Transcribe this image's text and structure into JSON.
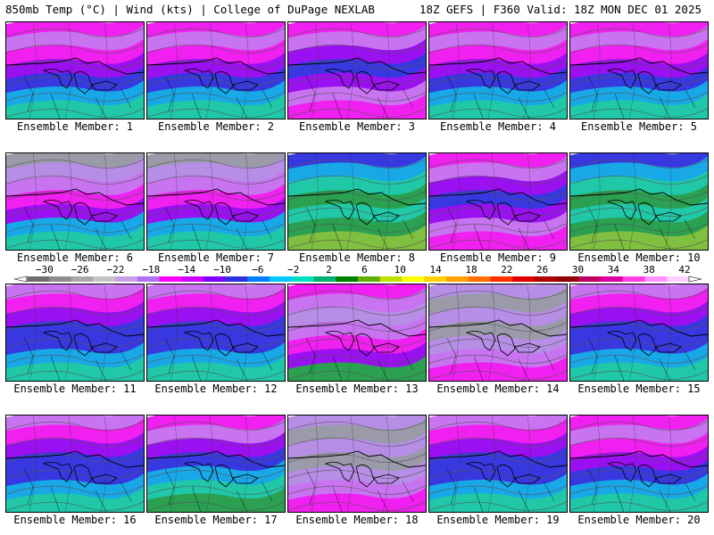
{
  "header": {
    "left": "850mb Temp (°C) | Wind (kts) | College of DuPage NEXLAB",
    "right": "18Z GEFS | F360 Valid: 18Z MON DEC 01 2025"
  },
  "members": [
    {
      "label": "Ensemble Member: 1",
      "pattern": "warm-south"
    },
    {
      "label": "Ensemble Member: 2",
      "pattern": "warm-south"
    },
    {
      "label": "Ensemble Member: 3",
      "pattern": "cold-dip"
    },
    {
      "label": "Ensemble Member: 4",
      "pattern": "warm-south"
    },
    {
      "label": "Ensemble Member: 5",
      "pattern": "warm-south"
    },
    {
      "label": "Ensemble Member: 6",
      "pattern": "cold-north"
    },
    {
      "label": "Ensemble Member: 7",
      "pattern": "cold-north"
    },
    {
      "label": "Ensemble Member: 8",
      "pattern": "mild"
    },
    {
      "label": "Ensemble Member: 9",
      "pattern": "cold-dip"
    },
    {
      "label": "Ensemble Member: 10",
      "pattern": "mild"
    },
    {
      "label": "Ensemble Member: 11",
      "pattern": "blue-south"
    },
    {
      "label": "Ensemble Member: 12",
      "pattern": "blue-south"
    },
    {
      "label": "Ensemble Member: 13",
      "pattern": "warm-east"
    },
    {
      "label": "Ensemble Member: 14",
      "pattern": "cold-core"
    },
    {
      "label": "Ensemble Member: 15",
      "pattern": "blue-south"
    },
    {
      "label": "Ensemble Member: 16",
      "pattern": "blue-south"
    },
    {
      "label": "Ensemble Member: 17",
      "pattern": "warm-sw"
    },
    {
      "label": "Ensemble Member: 18",
      "pattern": "cold-core"
    },
    {
      "label": "Ensemble Member: 19",
      "pattern": "blue-south"
    },
    {
      "label": "Ensemble Member: 20",
      "pattern": "warm-south"
    }
  ],
  "colorbar": {
    "labels": [
      "-30",
      "-26",
      "-22",
      "-18",
      "-14",
      "-10",
      "-6",
      "-2",
      "2",
      "6",
      "10",
      "14",
      "18",
      "22",
      "26",
      "30",
      "34",
      "38",
      "42"
    ],
    "colors": [
      "#6e6e6e",
      "#8c8c8c",
      "#a8a8a8",
      "#c4c4c4",
      "#c8a0e8",
      "#b070f0",
      "#ff00ff",
      "#d000ff",
      "#8000ff",
      "#3030e0",
      "#0080ff",
      "#00c8ff",
      "#00e0c0",
      "#00b070",
      "#008000",
      "#60b000",
      "#c0e000",
      "#ffff00",
      "#ffd000",
      "#ffa000",
      "#ff7000",
      "#ff3000",
      "#e00000",
      "#b00000",
      "#900000",
      "#c00060",
      "#e000a0",
      "#ff40e0",
      "#ff90ff",
      "#ffd0ff"
    ]
  }
}
